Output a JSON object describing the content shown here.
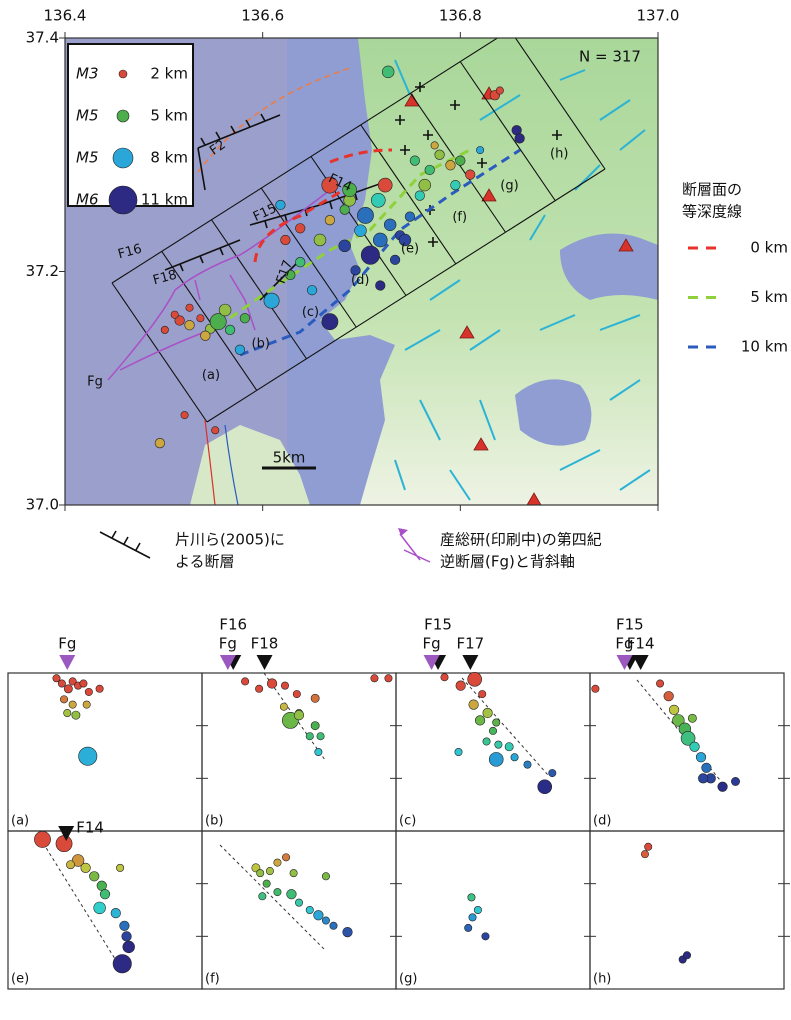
{
  "map": {
    "xlim": [
      136.4,
      137.0
    ],
    "ylim": [
      37.0,
      37.4
    ],
    "xticks": [
      136.4,
      136.6,
      136.8,
      {
        "value": 137,
        "label": "137.0"
      }
    ],
    "yticks": [
      {
        "value": 37,
        "label": "37.0"
      },
      37.2,
      37.4
    ],
    "count_label": "N = 317",
    "magnitude_legend": [
      {
        "magnitude": "M3",
        "depth": {
          "value": 2,
          "label": "2 km"
        },
        "color": "#d94a3a"
      },
      {
        "magnitude": "M5",
        "depth": {
          "value": 5,
          "label": "5 km"
        },
        "color": "#4cae4c"
      },
      {
        "magnitude": "M5",
        "depth": {
          "value": 8,
          "label": "8 km"
        },
        "color": "#2aa7d8"
      },
      {
        "magnitude": "M6",
        "depth": {
          "value": 11,
          "label": "11 km"
        },
        "color": "#2c2a82"
      }
    ],
    "fault_labels": [
      "F2",
      "F15",
      "F14",
      "F16",
      "F18",
      "F17",
      "Fg"
    ],
    "section_labels": [
      "(a)",
      "(b)",
      "(c)",
      "(d)",
      "(e)",
      "(f)",
      "(g)",
      "(h)"
    ],
    "scale_bar": "5km",
    "events": [
      [
        136.516,
        37.158,
        2,
        3.5
      ],
      [
        136.511,
        37.163,
        1,
        3
      ],
      [
        136.526,
        37.154,
        3,
        3.5
      ],
      [
        136.537,
        37.16,
        2,
        3
      ],
      [
        136.547,
        37.151,
        4,
        3.5
      ],
      [
        136.555,
        37.157,
        5,
        5
      ],
      [
        136.567,
        37.15,
        6,
        3.5
      ],
      [
        136.501,
        37.15,
        2,
        3
      ],
      [
        136.526,
        37.169,
        1,
        3
      ],
      [
        136.582,
        37.16,
        5,
        3.5
      ],
      [
        136.609,
        37.175,
        8,
        4.8
      ],
      [
        136.638,
        37.208,
        6,
        3.5
      ],
      [
        136.623,
        37.227,
        2,
        3.5
      ],
      [
        136.658,
        37.227,
        4,
        4
      ],
      [
        136.668,
        37.244,
        3,
        3.5
      ],
      [
        136.683,
        37.253,
        5,
        3.5
      ],
      [
        136.688,
        37.261,
        4,
        4
      ],
      [
        136.699,
        37.235,
        8,
        4
      ],
      [
        136.709,
        37.214,
        11,
        5.5
      ],
      [
        136.719,
        37.227,
        9,
        4.5
      ],
      [
        136.729,
        37.24,
        9,
        4
      ],
      [
        136.717,
        37.261,
        7,
        4.5
      ],
      [
        136.724,
        37.274,
        2,
        4.5
      ],
      [
        136.668,
        37.274,
        1,
        5
      ],
      [
        136.683,
        37.222,
        10,
        4
      ],
      [
        136.694,
        37.201,
        10,
        3.5
      ],
      [
        136.739,
        37.231,
        10,
        3.5
      ],
      [
        136.749,
        37.247,
        9,
        3.5
      ],
      [
        136.759,
        37.265,
        7,
        3.5
      ],
      [
        136.769,
        37.287,
        6,
        3.5
      ],
      [
        136.779,
        37.3,
        4,
        3.5
      ],
      [
        136.79,
        37.291,
        3,
        3.5
      ],
      [
        136.8,
        37.295,
        5,
        3.5
      ],
      [
        136.81,
        37.283,
        2,
        3.5
      ],
      [
        136.795,
        37.274,
        7,
        3.5
      ],
      [
        136.754,
        37.295,
        6,
        3.5
      ],
      [
        136.764,
        37.274,
        4,
        4
      ],
      [
        136.774,
        37.308,
        3,
        3
      ],
      [
        136.82,
        37.304,
        8,
        3
      ],
      [
        136.727,
        37.371,
        6,
        4
      ],
      [
        136.857,
        37.321,
        11,
        3.5
      ],
      [
        136.86,
        37.314,
        11,
        3.5
      ],
      [
        136.668,
        37.157,
        11,
        5
      ],
      [
        136.577,
        37.133,
        8,
        3.5
      ],
      [
        136.628,
        37.197,
        5,
        3.5
      ],
      [
        136.65,
        37.184,
        8,
        3.5
      ],
      [
        136.496,
        37.053,
        3,
        3.5
      ],
      [
        136.521,
        37.077,
        1,
        3
      ],
      [
        136.552,
        37.064,
        1,
        3
      ],
      [
        136.638,
        37.237,
        1,
        3.5
      ],
      [
        136.734,
        37.21,
        10,
        3.5
      ],
      [
        136.704,
        37.248,
        9,
        5
      ],
      [
        136.744,
        37.227,
        10,
        4
      ],
      [
        136.719,
        37.188,
        11,
        3.5
      ],
      [
        136.835,
        37.351,
        2,
        3.5
      ],
      [
        136.84,
        37.355,
        2,
        3
      ],
      [
        136.688,
        37.27,
        5,
        4.5
      ],
      [
        136.618,
        37.257,
        8,
        3.5
      ],
      [
        136.562,
        37.167,
        4,
        4
      ],
      [
        136.542,
        37.145,
        3,
        3.5
      ]
    ]
  },
  "contour_legend": {
    "title": [
      "断層面の",
      "等深度線"
    ],
    "items": [
      {
        "label": "0 km",
        "color": "#e8322a"
      },
      {
        "label": "5 km",
        "color": "#8fd13a"
      },
      {
        "label": "10 km",
        "color": "#2a5cc0"
      }
    ]
  },
  "fault_legend": [
    {
      "lines": [
        "片川ら(2005)に",
        "よる断層"
      ]
    },
    {
      "lines": [
        "産総研(印刷中)の第四紀",
        "逆断層(Fg)と背斜軸"
      ]
    }
  ],
  "cross_sections": {
    "xlim": [
      0,
      18
    ],
    "ylim": [
      0,
      15
    ],
    "yticks": [
      5,
      10
    ],
    "panels": [
      {
        "label": "(a)",
        "markers": [
          {
            "label": "Fg",
            "x": 5.5,
            "color": "#9b59c0"
          }
        ],
        "events": [
          [
            4.5,
            0.5,
            3
          ],
          [
            5,
            1,
            3
          ],
          [
            5.6,
            1.5,
            3.2
          ],
          [
            6,
            0.8,
            3
          ],
          [
            6.5,
            1.2,
            3
          ],
          [
            7,
            1,
            3
          ],
          [
            7.5,
            1.8,
            3
          ],
          [
            8.5,
            1.5,
            3
          ],
          [
            5.2,
            2.5,
            3
          ],
          [
            6,
            3,
            3
          ],
          [
            5.5,
            3.8,
            3
          ],
          [
            6.3,
            4,
            3.2
          ],
          [
            7.3,
            3,
            3
          ],
          [
            7.4,
            7.9,
            5.5
          ]
        ]
      },
      {
        "label": "(b)",
        "markers": [
          {
            "label": "F16",
            "x": 2.9,
            "color": "#111111"
          },
          {
            "label": "Fg",
            "x": 2.4,
            "color": "#9b59c0"
          },
          {
            "label": "F18",
            "x": 5.8,
            "color": "#111111"
          }
        ],
        "events": [
          [
            4,
            0.8,
            3
          ],
          [
            5.3,
            1.5,
            3
          ],
          [
            6.5,
            1,
            3.5
          ],
          [
            7.7,
            1.2,
            3
          ],
          [
            8.8,
            2,
            3
          ],
          [
            10.5,
            2.4,
            3.2
          ],
          [
            9,
            3.8,
            3
          ],
          [
            7.6,
            3.2,
            3
          ],
          [
            8.2,
            4.5,
            5
          ],
          [
            9,
            4,
            3.5
          ],
          [
            10.5,
            5,
            3.2
          ],
          [
            11,
            6,
            3
          ],
          [
            10,
            6,
            3
          ],
          [
            10.8,
            7.5,
            3
          ],
          [
            16,
            0.5,
            3
          ],
          [
            17.3,
            0.5,
            3
          ]
        ]
      },
      {
        "label": "(c)",
        "markers": [
          {
            "label": "F15",
            "x": 3.9,
            "color": "#111111"
          },
          {
            "label": "Fg",
            "x": 3.3,
            "color": "#9b59c0"
          },
          {
            "label": "F17",
            "x": 6.9,
            "color": "#111111"
          }
        ],
        "events": [
          [
            4.5,
            0.4,
            3
          ],
          [
            6,
            1.2,
            3.5
          ],
          [
            7.3,
            0.6,
            4.5
          ],
          [
            8,
            2,
            3
          ],
          [
            7.2,
            3,
            3.5
          ],
          [
            8.5,
            3.8,
            3.5
          ],
          [
            7.8,
            4.5,
            3.5
          ],
          [
            9.3,
            4.7,
            3
          ],
          [
            9,
            5.5,
            3
          ],
          [
            8.4,
            6.5,
            3
          ],
          [
            9.5,
            6.8,
            3
          ],
          [
            10.5,
            7,
            3.2
          ],
          [
            9.3,
            8.2,
            4.5
          ],
          [
            11,
            8,
            3
          ],
          [
            12.2,
            8.7,
            3
          ],
          [
            14.5,
            9.5,
            3
          ],
          [
            13.8,
            10.8,
            4.5
          ],
          [
            5.8,
            7.5,
            3
          ]
        ]
      },
      {
        "label": "(d)",
        "markers": [
          {
            "label": "F15",
            "x": 3.7,
            "color": "#111111"
          },
          {
            "label": "Fg",
            "x": 3.2,
            "color": "#9b59c0"
          },
          {
            "label": "F14",
            "x": 4.7,
            "color": "#111111"
          }
        ],
        "events": [
          [
            0.5,
            1.5,
            3
          ],
          [
            6.5,
            1,
            3
          ],
          [
            7.3,
            2.2,
            3.5
          ],
          [
            7.8,
            3.5,
            3.5
          ],
          [
            8.2,
            4.5,
            4
          ],
          [
            8.8,
            5.3,
            4
          ],
          [
            9.1,
            6.2,
            4.5
          ],
          [
            9.7,
            7,
            3.5
          ],
          [
            10.3,
            8,
            3.5
          ],
          [
            10.8,
            9,
            3.5
          ],
          [
            11.2,
            10,
            3.5
          ],
          [
            13.5,
            10.3,
            3.2
          ],
          [
            12.3,
            10.8,
            3.5
          ],
          [
            10.5,
            10,
            3.5
          ],
          [
            9.5,
            4.3,
            3.2
          ]
        ]
      },
      {
        "label": "(e)",
        "markers": [
          {
            "label": "F14",
            "x": 5.4,
            "color": "#111111"
          }
        ],
        "events": [
          [
            3.2,
            0.8,
            5
          ],
          [
            5.2,
            1.2,
            5
          ],
          [
            6.5,
            2.8,
            4
          ],
          [
            7.2,
            3.5,
            3.5
          ],
          [
            8,
            4.3,
            3.5
          ],
          [
            8.7,
            5.2,
            3.5
          ],
          [
            9,
            6,
            3.5
          ],
          [
            8.5,
            7.3,
            4
          ],
          [
            10,
            7.8,
            3.5
          ],
          [
            10.8,
            9,
            3.5
          ],
          [
            11,
            10,
            3.5
          ],
          [
            11.2,
            11,
            4
          ],
          [
            10.6,
            12.6,
            5.5
          ],
          [
            5.8,
            3.2,
            3.2
          ],
          [
            10.4,
            3.5,
            3
          ]
        ]
      },
      {
        "label": "(f)",
        "markers": [],
        "events": [
          [
            5,
            3.5,
            3.2
          ],
          [
            5.4,
            4,
            3
          ],
          [
            6.3,
            3.8,
            3
          ],
          [
            7,
            3,
            3
          ],
          [
            7.8,
            2.5,
            3
          ],
          [
            6,
            5,
            3
          ],
          [
            7,
            5.8,
            3
          ],
          [
            8.3,
            6,
            3.5
          ],
          [
            9,
            6.8,
            3
          ],
          [
            10,
            7.5,
            3
          ],
          [
            10.8,
            8,
            3.5
          ],
          [
            11.5,
            8.5,
            3
          ],
          [
            12.2,
            9,
            3
          ],
          [
            13.5,
            9.6,
            3.5
          ],
          [
            5.6,
            6.2,
            3
          ],
          [
            8.5,
            4,
            3
          ],
          [
            11.5,
            4.3,
            3
          ]
        ]
      },
      {
        "label": "(g)",
        "markers": [],
        "events": [
          [
            7,
            6.3,
            3
          ],
          [
            7.6,
            7.5,
            3
          ],
          [
            7.1,
            8.2,
            3
          ],
          [
            6.7,
            9.2,
            3
          ],
          [
            8.3,
            10,
            3
          ]
        ]
      },
      {
        "label": "(h)",
        "markers": [],
        "events": [
          [
            5.4,
            1.5,
            3
          ],
          [
            5.1,
            2.2,
            3
          ],
          [
            8.6,
            12.2,
            3
          ],
          [
            9,
            11.8,
            3
          ]
        ]
      }
    ]
  }
}
